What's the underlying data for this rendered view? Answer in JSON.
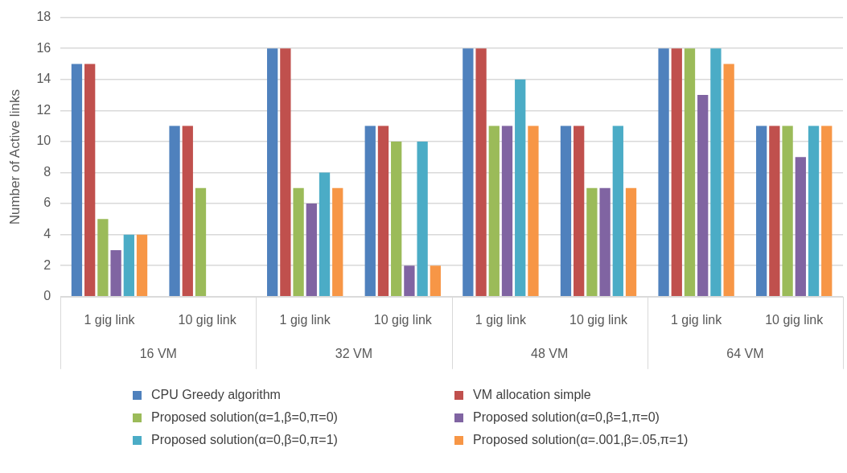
{
  "chart_data": {
    "type": "bar",
    "ylabel": "Number of Active links",
    "categories": [
      "1 gig link",
      "10 gig link",
      "1 gig link",
      "10 gig link",
      "1 gig link",
      "10 gig link",
      "1 gig link",
      "10 gig link"
    ],
    "annotations": [
      "16 VM",
      "32 VM",
      "48 VM",
      "64 VM"
    ],
    "series": [
      {
        "name": "CPU Greedy algorithm",
        "color": "#4f81bd",
        "values": [
          15,
          11,
          16,
          11,
          16,
          11,
          16,
          11
        ]
      },
      {
        "name": "VM allocation simple",
        "color": "#c0504d",
        "values": [
          15,
          11,
          16,
          11,
          16,
          11,
          16,
          11
        ]
      },
      {
        "name": "Proposed solution(α=1,β=0,π=0)",
        "color": "#9bbb59",
        "values": [
          5,
          7,
          7,
          10,
          11,
          7,
          16,
          11
        ]
      },
      {
        "name": "Proposed solution(α=0,β=1,π=0)",
        "color": "#8064a2",
        "values": [
          3,
          0,
          6,
          2,
          11,
          7,
          13,
          9
        ]
      },
      {
        "name": "Proposed solution(α=0,β=0,π=1)",
        "color": "#4bacc6",
        "values": [
          4,
          0,
          8,
          10,
          14,
          11,
          16,
          11
        ]
      },
      {
        "name": "Proposed solution(α=.001,β=.05,π=1)",
        "color": "#f79646",
        "values": [
          4,
          0,
          7,
          2,
          11,
          7,
          15,
          11
        ]
      }
    ],
    "ylim": [
      0,
      18
    ],
    "yticks": [
      0,
      2,
      4,
      6,
      8,
      10,
      12,
      14,
      16,
      18
    ],
    "grid": "y",
    "legend": "bottom"
  }
}
